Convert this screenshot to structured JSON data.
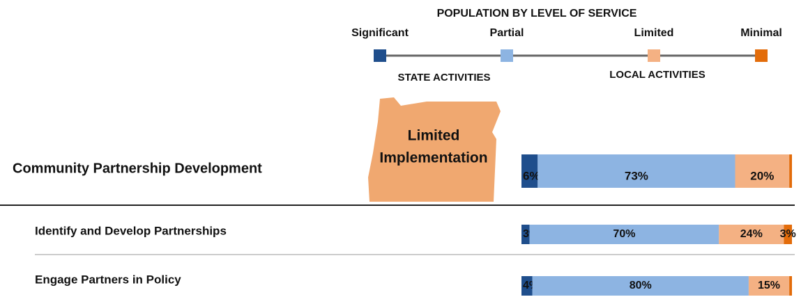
{
  "chart_data": {
    "type": "stacked-bar",
    "title": "POPULATION BY LEVEL OF SERVICE",
    "group_labels": [
      "STATE ACTIVITIES",
      "LOCAL ACTIVITIES"
    ],
    "annotation": [
      "Limited",
      "Implementation"
    ],
    "categories": [
      "Community Partnership Development",
      "Identify and Develop Partnerships",
      "Engage Partners in Policy"
    ],
    "xlim": [
      0,
      100
    ],
    "series": [
      {
        "name": "Significant",
        "color": "#1f4e8c",
        "label_color": "#dbe6f4",
        "values": [
          6,
          3,
          4
        ],
        "value_labels": [
          "6%",
          "3%",
          "4%"
        ]
      },
      {
        "name": "Partial",
        "color": "#8db4e2",
        "label_color": "#111111",
        "values": [
          73,
          70,
          80
        ],
        "value_labels": [
          "73%",
          "70%",
          "80%"
        ]
      },
      {
        "name": "Limited",
        "color": "#f4b183",
        "label_color": "#111111",
        "values": [
          20,
          24,
          15
        ],
        "value_labels": [
          "20%",
          "24%",
          "15%"
        ]
      },
      {
        "name": "Minimal",
        "color": "#e36c0a",
        "label_color": "#111111",
        "values": [
          1,
          3,
          1
        ],
        "value_labels": [
          null,
          "3%",
          null
        ]
      }
    ]
  }
}
